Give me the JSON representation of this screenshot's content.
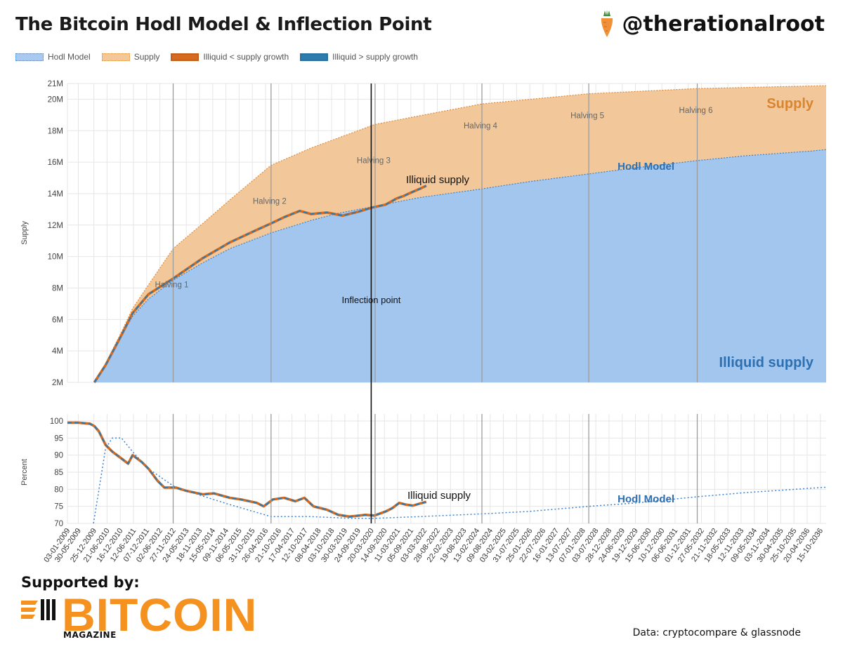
{
  "header": {
    "title": "The Bitcoin Hodl Model & Inflection Point",
    "handle": "@therationalroot"
  },
  "legend": [
    {
      "label": "Hodl Model",
      "color": "#a9c9f0"
    },
    {
      "label": "Supply",
      "color": "#f2c89a"
    },
    {
      "label": "Illiquid < supply growth",
      "color": "#d66a1e"
    },
    {
      "label": "Illiquid > supply growth",
      "color": "#2e7bb0"
    }
  ],
  "footer": {
    "supported_by": "Supported by:",
    "brand": "BITCOIN",
    "brand_sub": "MAGAZINE",
    "source": "Data: cryptocompare & glassnode"
  },
  "chart_data": [
    {
      "type": "area",
      "ylabel": "Supply",
      "ylim": [
        2000000,
        21000000
      ],
      "yticks": [
        "2M",
        "4M",
        "6M",
        "8M",
        "10M",
        "12M",
        "14M",
        "16M",
        "18M",
        "20M",
        "21M"
      ],
      "grid": true,
      "halvings": [
        {
          "label": "Halving 1",
          "date": "2012-11-28"
        },
        {
          "label": "Halving 2",
          "date": "2016-07-09"
        },
        {
          "label": "Halving 3",
          "date": "2020-05-11"
        },
        {
          "label": "Halving 4",
          "date": "2024-04-20"
        },
        {
          "label": "Halving 5",
          "date": "2028-03-30"
        },
        {
          "label": "Halving 6",
          "date": "2032-03-31"
        }
      ],
      "inflection": {
        "label": "Inflection point",
        "date": "2020-03-20"
      },
      "annotations": {
        "supply": "Supply",
        "hodl": "Hodl Model",
        "illiquid": "Illiquid supply",
        "illiquid_area": "Illiquid supply"
      },
      "series": [
        {
          "name": "Supply",
          "points": [
            [
              "2010-01-01",
              2000000
            ],
            [
              "2010-06-01",
              3200000
            ],
            [
              "2011-01-01",
              5200000
            ],
            [
              "2011-06-01",
              6700000
            ],
            [
              "2012-01-01",
              8200000
            ],
            [
              "2012-11-28",
              10500000
            ],
            [
              "2014-01-01",
              12100000
            ],
            [
              "2015-01-01",
              13600000
            ],
            [
              "2016-07-09",
              15800000
            ],
            [
              "2018-01-01",
              16900000
            ],
            [
              "2020-05-11",
              18400000
            ],
            [
              "2022-01-01",
              18950000
            ],
            [
              "2024-04-20",
              19700000
            ],
            [
              "2028-03-30",
              20350000
            ],
            [
              "2032-03-31",
              20680000
            ],
            [
              "2036-06-01",
              20840000
            ],
            [
              "2037-01-01",
              20860000
            ]
          ]
        },
        {
          "name": "Hodl Model",
          "points": [
            [
              "2010-01-01",
              2000000
            ],
            [
              "2010-06-01",
              3000000
            ],
            [
              "2011-01-01",
              5000000
            ],
            [
              "2011-06-01",
              6200000
            ],
            [
              "2012-01-01",
              7300000
            ],
            [
              "2012-11-28",
              8500000
            ],
            [
              "2014-01-01",
              9600000
            ],
            [
              "2015-01-01",
              10500000
            ],
            [
              "2016-07-09",
              11500000
            ],
            [
              "2018-01-01",
              12300000
            ],
            [
              "2019-01-01",
              12750000
            ],
            [
              "2020-05-11",
              13200000
            ],
            [
              "2022-01-01",
              13750000
            ],
            [
              "2024-04-20",
              14300000
            ],
            [
              "2026-01-01",
              14750000
            ],
            [
              "2028-03-30",
              15250000
            ],
            [
              "2030-01-01",
              15650000
            ],
            [
              "2032-03-31",
              16100000
            ],
            [
              "2034-01-01",
              16400000
            ],
            [
              "2036-06-01",
              16700000
            ],
            [
              "2037-01-01",
              16800000
            ]
          ]
        },
        {
          "name": "Illiquid supply",
          "points": [
            [
              "2010-01-01",
              2000000
            ],
            [
              "2010-06-01",
              3100000
            ],
            [
              "2011-01-01",
              5000000
            ],
            [
              "2011-06-01",
              6400000
            ],
            [
              "2012-01-01",
              7600000
            ],
            [
              "2012-11-28",
              8600000
            ],
            [
              "2014-01-01",
              9900000
            ],
            [
              "2015-01-01",
              10900000
            ],
            [
              "2016-01-01",
              11700000
            ],
            [
              "2016-07-09",
              12100000
            ],
            [
              "2017-01-01",
              12500000
            ],
            [
              "2017-08-01",
              12900000
            ],
            [
              "2018-01-01",
              12700000
            ],
            [
              "2018-08-01",
              12800000
            ],
            [
              "2019-03-01",
              12600000
            ],
            [
              "2019-10-01",
              12850000
            ],
            [
              "2020-03-20",
              13100000
            ],
            [
              "2020-10-01",
              13300000
            ],
            [
              "2021-03-01",
              13700000
            ],
            [
              "2021-06-01",
              13850000
            ],
            [
              "2021-09-01",
              14050000
            ],
            [
              "2022-01-01",
              14300000
            ],
            [
              "2022-04-01",
              14500000
            ]
          ]
        }
      ]
    },
    {
      "type": "line",
      "ylabel": "Percent",
      "ylim": [
        70,
        100
      ],
      "yticks": [
        "70",
        "75",
        "80",
        "85",
        "90",
        "95",
        "100"
      ],
      "annotations": {
        "illiquid": "Illiquid supply",
        "hodl": "Hodl Model"
      },
      "x_tick_labels": [
        "03-01-2009",
        "30-05-2009",
        "25-12-2009",
        "21-06-2010",
        "16-12-2010",
        "12-06-2011",
        "07-12-2011",
        "02-06-2012",
        "27-11-2012",
        "24-05-2013",
        "18-11-2013",
        "15-05-2014",
        "09-11-2014",
        "06-05-2015",
        "31-10-2015",
        "26-04-2016",
        "21-10-2016",
        "17-04-2017",
        "12-10-2017",
        "08-04-2018",
        "03-10-2018",
        "30-03-2019",
        "24-09-2019",
        "20-03-2020",
        "14-09-2020",
        "11-03-2021",
        "05-09-2021",
        "03-03-2022",
        "28-08-2022",
        "22-02-2023",
        "19-08-2023",
        "13-02-2024",
        "09-08-2024",
        "03-02-2025",
        "31-07-2025",
        "25-01-2026",
        "22-07-2026",
        "16-01-2027",
        "13-07-2027",
        "07-01-2028",
        "03-07-2028",
        "28-12-2028",
        "24-06-2029",
        "19-12-2029",
        "15-06-2030",
        "10-12-2030",
        "06-06-2031",
        "01-12-2031",
        "27-05-2032",
        "21-11-2032",
        "18-05-2033",
        "12-11-2033",
        "09-05-2034",
        "03-11-2034",
        "30-04-2035",
        "25-10-2035",
        "20-04-2036",
        "15-10-2036"
      ],
      "series": [
        {
          "name": "Hodl Model",
          "points": [
            [
              "2009-12-20",
              70
            ],
            [
              "2010-06-01",
              92
            ],
            [
              "2010-09-01",
              95
            ],
            [
              "2011-01-01",
              95
            ],
            [
              "2011-06-01",
              91
            ],
            [
              "2012-01-01",
              86
            ],
            [
              "2012-11-28",
              81
            ],
            [
              "2014-01-01",
              78
            ],
            [
              "2015-01-01",
              75.5
            ],
            [
              "2016-07-09",
              72
            ],
            [
              "2018-01-01",
              72
            ],
            [
              "2019-06-01",
              71.5
            ],
            [
              "2020-05-11",
              71.5
            ],
            [
              "2022-01-01",
              72
            ],
            [
              "2024-04-20",
              72.8
            ],
            [
              "2026-01-01",
              73.5
            ],
            [
              "2028-03-30",
              75
            ],
            [
              "2030-01-01",
              76
            ],
            [
              "2032-03-31",
              77.8
            ],
            [
              "2034-01-01",
              79
            ],
            [
              "2037-01-01",
              80.6
            ]
          ]
        },
        {
          "name": "Illiquid supply",
          "points": [
            [
              "2009-01-03",
              99.5
            ],
            [
              "2009-06-01",
              99.5
            ],
            [
              "2009-11-01",
              99.2
            ],
            [
              "2010-01-01",
              98.5
            ],
            [
              "2010-03-01",
              97
            ],
            [
              "2010-06-01",
              93
            ],
            [
              "2010-09-01",
              91
            ],
            [
              "2011-01-01",
              89
            ],
            [
              "2011-04-01",
              87.5
            ],
            [
              "2011-06-01",
              90
            ],
            [
              "2011-10-01",
              88
            ],
            [
              "2012-01-01",
              86
            ],
            [
              "2012-05-01",
              82.5
            ],
            [
              "2012-08-01",
              80.5
            ],
            [
              "2013-01-01",
              80.5
            ],
            [
              "2013-06-01",
              79.5
            ],
            [
              "2014-01-01",
              78.5
            ],
            [
              "2014-06-01",
              78.8
            ],
            [
              "2015-01-01",
              77.5
            ],
            [
              "2015-06-01",
              77
            ],
            [
              "2016-01-01",
              76
            ],
            [
              "2016-04-01",
              75
            ],
            [
              "2016-08-01",
              77
            ],
            [
              "2017-01-01",
              77.5
            ],
            [
              "2017-06-01",
              76.5
            ],
            [
              "2017-10-01",
              77.5
            ],
            [
              "2018-02-01",
              75
            ],
            [
              "2018-08-01",
              74
            ],
            [
              "2019-01-01",
              72.5
            ],
            [
              "2019-06-01",
              72
            ],
            [
              "2020-01-01",
              72.5
            ],
            [
              "2020-05-01",
              72.3
            ],
            [
              "2020-10-01",
              73.5
            ],
            [
              "2021-01-01",
              74.5
            ],
            [
              "2021-04-01",
              76
            ],
            [
              "2021-07-01",
              75.5
            ],
            [
              "2021-10-01",
              75.2
            ],
            [
              "2022-01-01",
              75.8
            ],
            [
              "2022-04-01",
              76.3
            ]
          ]
        }
      ]
    }
  ]
}
